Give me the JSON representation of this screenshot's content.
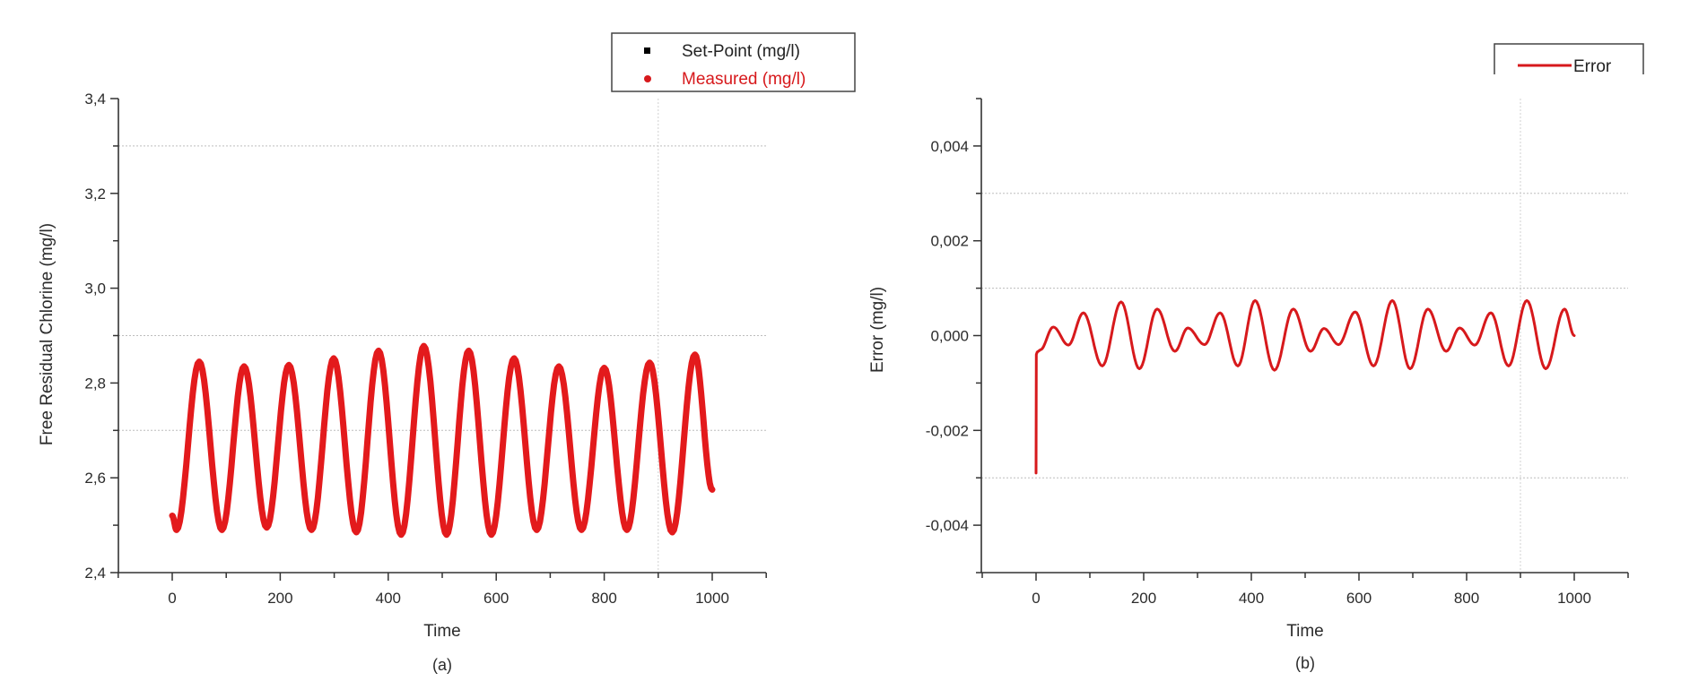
{
  "chart_data": [
    {
      "id": "a",
      "type": "line",
      "panel_label": "(a)",
      "title": "",
      "xlabel": "Time",
      "ylabel": "Free Residual Chlorine (mg/l)",
      "xlim": [
        -100,
        1100
      ],
      "ylim": [
        2.4,
        3.4
      ],
      "x_ticks": [
        0,
        200,
        400,
        600,
        800,
        1000
      ],
      "x_tick_labels": [
        "0",
        "200",
        "400",
        "600",
        "800",
        "1000"
      ],
      "y_ticks": [
        2.4,
        2.6,
        2.8,
        3.0,
        3.2,
        3.4
      ],
      "y_tick_labels": [
        "2,4",
        "2,6",
        "2,8",
        "3,0",
        "3,2",
        "3,4"
      ],
      "grid": {
        "horizontal": [
          2.7,
          2.9,
          3.3
        ],
        "vertical": [
          900
        ],
        "style": "dotted"
      },
      "legend": {
        "position": "top-right (outside)",
        "entries": [
          {
            "label": "Set-Point (mg/l)",
            "color": "#000000",
            "marker": "square"
          },
          {
            "label": "Measured (mg/l)",
            "color": "#d7191c",
            "marker": "circle"
          }
        ]
      },
      "series": [
        {
          "name": "Measured (mg/l)",
          "color": "#e31a1c",
          "x": [
            0,
            8,
            50,
            92,
            133,
            175,
            216,
            258,
            299,
            341,
            382,
            424,
            466,
            508,
            549,
            591,
            633,
            675,
            716,
            758,
            800,
            842,
            884,
            926,
            968,
            1000
          ],
          "y": [
            2.52,
            2.49,
            2.845,
            2.49,
            2.835,
            2.495,
            2.838,
            2.49,
            2.852,
            2.485,
            2.868,
            2.48,
            2.878,
            2.48,
            2.868,
            2.48,
            2.852,
            2.49,
            2.835,
            2.49,
            2.832,
            2.49,
            2.843,
            2.485,
            2.86,
            2.575
          ]
        },
        {
          "name": "Set-Point (mg/l)",
          "color": "#000000",
          "note": "hidden beneath measured curve",
          "x": [],
          "y": []
        }
      ]
    },
    {
      "id": "b",
      "type": "line",
      "panel_label": "(b)",
      "title": "",
      "xlabel": "Time",
      "ylabel": "Error (mg/l)",
      "xlim": [
        -100,
        1100
      ],
      "ylim": [
        -0.005,
        0.005
      ],
      "x_ticks": [
        0,
        200,
        400,
        600,
        800,
        1000
      ],
      "x_tick_labels": [
        "0",
        "200",
        "400",
        "600",
        "800",
        "1000"
      ],
      "y_ticks": [
        -0.004,
        -0.002,
        0.0,
        0.002,
        0.004
      ],
      "y_tick_labels": [
        "-0,004",
        "-0,002",
        "0,000",
        "0,002",
        "0,004"
      ],
      "grid": {
        "horizontal": [
          -0.003,
          0.001,
          0.003
        ],
        "vertical": [
          900
        ],
        "style": "dotted"
      },
      "legend": {
        "position": "top-right (outside)",
        "entries": [
          {
            "label": "Error",
            "color": "#d7191c",
            "marker": "line"
          }
        ]
      },
      "series": [
        {
          "name": "Error",
          "color": "#d7191c",
          "x": [
            0,
            0.5,
            2,
            8,
            32,
            60,
            88,
            123,
            158,
            192,
            225,
            258,
            282,
            313,
            342,
            375,
            407,
            443,
            478,
            510,
            535,
            562,
            593,
            627,
            662,
            695,
            728,
            762,
            787,
            815,
            845,
            878,
            912,
            947,
            982,
            1000
          ],
          "y": [
            -0.0029,
            -0.0004,
            -0.00035,
            -0.0003,
            0.00018,
            -0.0002,
            0.00048,
            -0.00064,
            0.00071,
            -0.0007,
            0.00056,
            -0.00033,
            0.00016,
            -0.00019,
            0.00048,
            -0.00064,
            0.00074,
            -0.00073,
            0.00056,
            -0.00033,
            0.00015,
            -0.00019,
            0.0005,
            -0.00064,
            0.00074,
            -0.0007,
            0.00056,
            -0.00033,
            0.00016,
            -0.0002,
            0.00048,
            -0.00064,
            0.00074,
            -0.0007,
            0.00056,
            0.0
          ]
        }
      ]
    }
  ],
  "charts": {
    "a": {
      "panel_label": "(a)",
      "xlabel": "Time",
      "ylabel": "Free Residual Chlorine (mg/l)",
      "legend_setpoint": "Set-Point (mg/l)",
      "legend_measured": "Measured (mg/l)"
    },
    "b": {
      "panel_label": "(b)",
      "xlabel": "Time",
      "ylabel": "Error (mg/l)",
      "legend_error": "Error"
    }
  },
  "colors": {
    "measured": "#e31a1c",
    "error": "#d7191c",
    "setpoint": "#000000",
    "axis": "#333333",
    "grid": "#bbbbbb"
  }
}
